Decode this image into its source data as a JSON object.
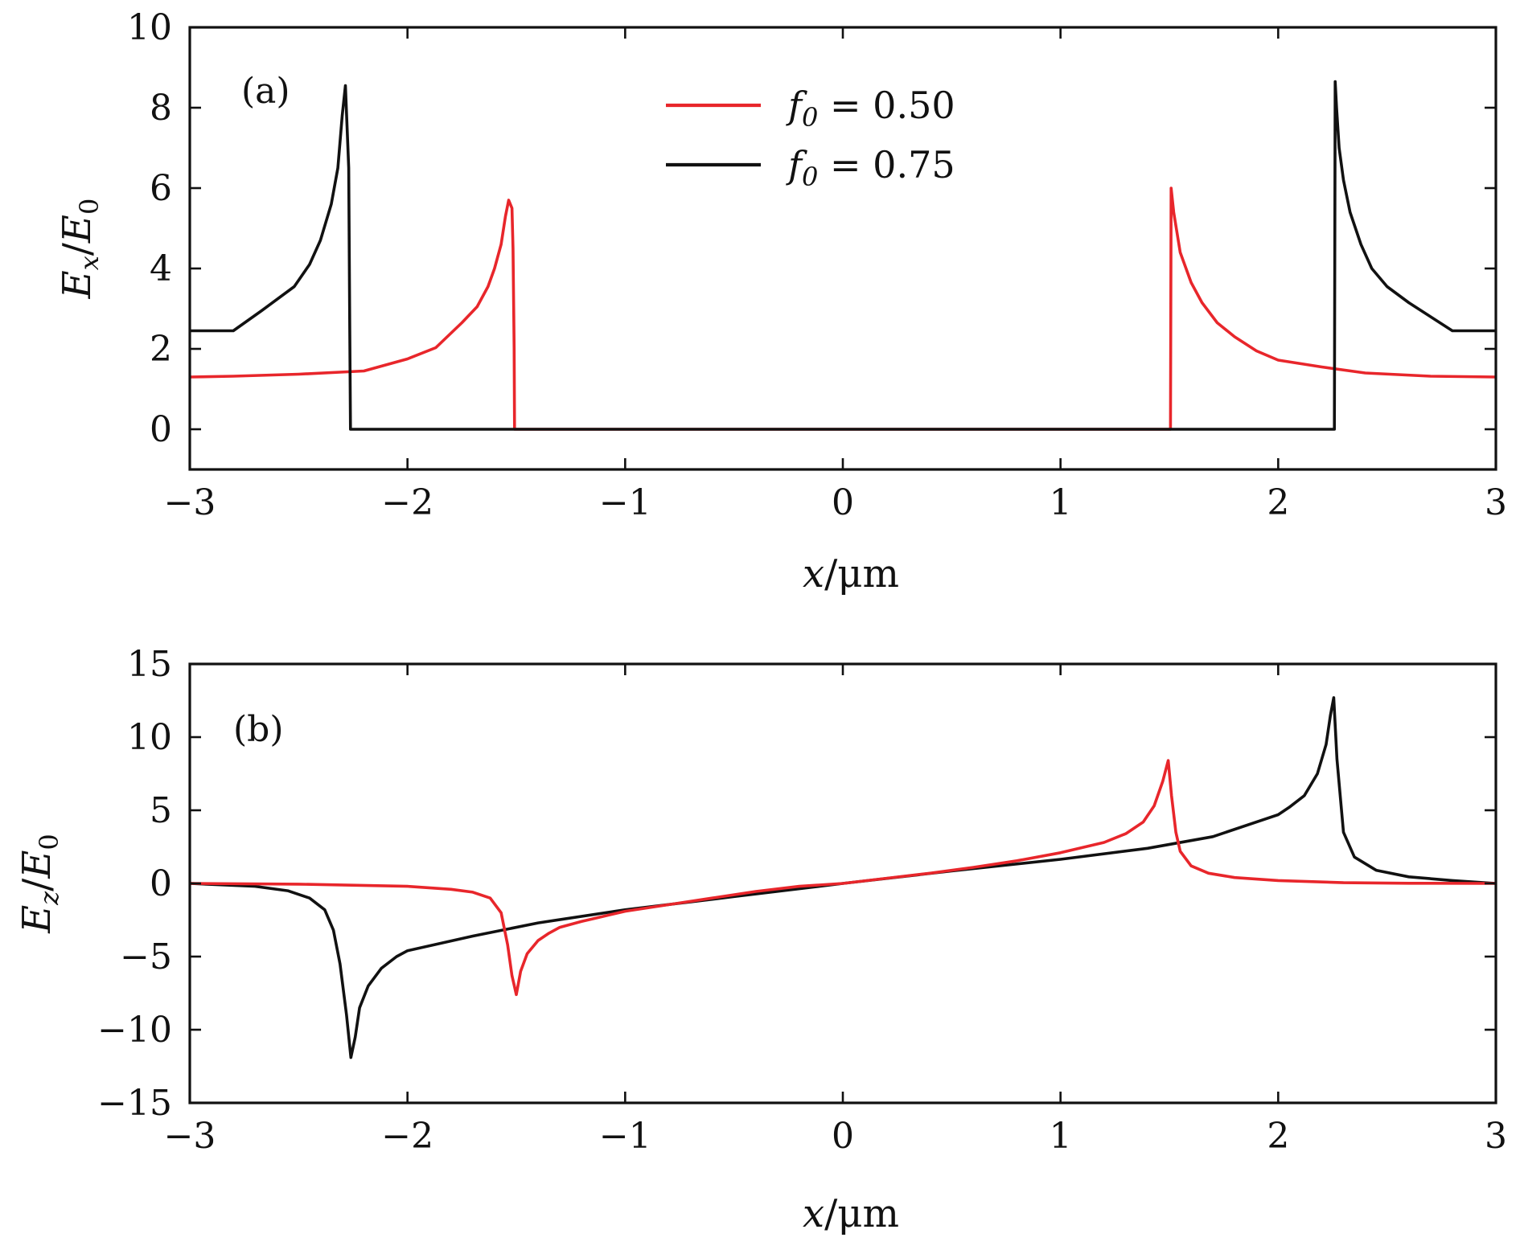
{
  "colors": {
    "red": "#e8262b",
    "black": "#111111"
  },
  "chart_data": [
    {
      "type": "line",
      "panel_label": "(a)",
      "xlabel": {
        "main": "x",
        "unit": "/μm"
      },
      "ylabel": {
        "num": "E",
        "num_sub": "x",
        "den": "E",
        "den_sub": "0"
      },
      "xlim": [
        -3,
        3
      ],
      "ylim": [
        -1,
        10
      ],
      "xticks": [
        -3,
        -2,
        -1,
        0,
        1,
        2,
        3
      ],
      "xtick_labels": [
        "−3",
        "−2",
        "−1",
        "0",
        "1",
        "2",
        "3"
      ],
      "yticks": [
        0,
        2,
        4,
        6,
        8,
        10
      ],
      "ytick_labels": [
        "0",
        "2",
        "4",
        "6",
        "8",
        "10"
      ],
      "legend": {
        "placement": "top-center",
        "entries": [
          {
            "var": "f",
            "sub": "0",
            "rest": " = 0.50",
            "color": "#e8262b"
          },
          {
            "var": "f",
            "sub": "0",
            "rest": " = 0.75",
            "color": "#111111"
          }
        ]
      },
      "series": [
        {
          "legend": "f0 = 0.50",
          "color": "#e8262b",
          "x": [
            -3.0,
            -2.8,
            -2.5,
            -2.2,
            -2.0,
            -1.87,
            -1.75,
            -1.68,
            -1.63,
            -1.6,
            -1.57,
            -1.55,
            -1.535,
            -1.52,
            -1.515,
            -1.51,
            -1.508,
            1.505,
            1.508,
            1.52,
            1.55,
            1.6,
            1.65,
            1.72,
            1.8,
            1.9,
            2.0,
            2.2,
            2.4,
            2.7,
            3.0
          ],
          "y": [
            1.3,
            1.32,
            1.37,
            1.45,
            1.75,
            2.03,
            2.65,
            3.05,
            3.55,
            4.0,
            4.6,
            5.3,
            5.7,
            5.5,
            4.5,
            2.0,
            0.0,
            0.0,
            6.0,
            5.4,
            4.4,
            3.65,
            3.15,
            2.65,
            2.3,
            1.95,
            1.72,
            1.55,
            1.4,
            1.32,
            1.3
          ]
        },
        {
          "legend": "f0 = 0.75",
          "color": "#111111",
          "x": [
            -3.0,
            -2.8,
            -2.67,
            -2.52,
            -2.45,
            -2.4,
            -2.35,
            -2.32,
            -2.3,
            -2.285,
            -2.27,
            -2.265,
            -2.262,
            2.258,
            2.262,
            2.268,
            2.28,
            2.3,
            2.33,
            2.38,
            2.43,
            2.5,
            2.6,
            2.8,
            3.0
          ],
          "y": [
            2.45,
            2.45,
            2.95,
            3.55,
            4.1,
            4.7,
            5.6,
            6.5,
            7.8,
            8.55,
            6.5,
            2.5,
            0.0,
            0.0,
            8.65,
            8.0,
            7.0,
            6.2,
            5.4,
            4.6,
            4.0,
            3.55,
            3.15,
            2.45,
            2.45
          ]
        }
      ]
    },
    {
      "type": "line",
      "panel_label": "(b)",
      "xlabel": {
        "main": "x",
        "unit": "/μm"
      },
      "ylabel": {
        "num": "E",
        "num_sub": "z",
        "den": "E",
        "den_sub": "0"
      },
      "xlim": [
        -3,
        3
      ],
      "ylim": [
        -15,
        15
      ],
      "xticks": [
        -3,
        -2,
        -1,
        0,
        1,
        2,
        3
      ],
      "xtick_labels": [
        "−3",
        "−2",
        "−1",
        "0",
        "1",
        "2",
        "3"
      ],
      "yticks": [
        -15,
        -10,
        -5,
        0,
        5,
        10,
        15
      ],
      "ytick_labels": [
        "−15",
        "−10",
        "−5",
        "0",
        "5",
        "10",
        "15"
      ],
      "series": [
        {
          "legend": "f0 = 0.50",
          "color": "#e8262b",
          "x": [
            -3.0,
            -2.5,
            -2.0,
            -1.8,
            -1.7,
            -1.62,
            -1.57,
            -1.54,
            -1.52,
            -1.5,
            -1.48,
            -1.45,
            -1.4,
            -1.35,
            -1.3,
            -1.2,
            -1.0,
            -0.8,
            -0.6,
            -0.4,
            -0.2,
            0.0,
            0.2,
            0.4,
            0.6,
            0.8,
            1.0,
            1.2,
            1.3,
            1.38,
            1.43,
            1.47,
            1.495,
            1.51,
            1.53,
            1.55,
            1.6,
            1.68,
            1.8,
            2.0,
            2.3,
            2.6,
            3.0
          ],
          "y": [
            0.0,
            -0.05,
            -0.2,
            -0.4,
            -0.6,
            -1.0,
            -2.0,
            -4.2,
            -6.3,
            -7.6,
            -6.0,
            -4.8,
            -3.9,
            -3.4,
            -3.0,
            -2.6,
            -1.9,
            -1.45,
            -1.0,
            -0.55,
            -0.2,
            0.0,
            0.35,
            0.7,
            1.1,
            1.55,
            2.1,
            2.8,
            3.4,
            4.2,
            5.3,
            7.0,
            8.4,
            6.0,
            3.5,
            2.2,
            1.2,
            0.7,
            0.4,
            0.2,
            0.05,
            0.01,
            0.0
          ],
          "order": 2
        },
        {
          "legend": "f0 = 0.75",
          "color": "#111111",
          "x": [
            -3.0,
            -2.7,
            -2.55,
            -2.45,
            -2.38,
            -2.34,
            -2.31,
            -2.28,
            -2.26,
            -2.24,
            -2.22,
            -2.18,
            -2.12,
            -2.05,
            -2.0,
            -1.7,
            -1.4,
            -1.0,
            -0.5,
            0.0,
            0.5,
            1.0,
            1.4,
            1.7,
            2.0,
            2.05,
            2.12,
            2.18,
            2.22,
            2.24,
            2.255,
            2.27,
            2.3,
            2.35,
            2.45,
            2.6,
            2.8,
            3.0
          ],
          "y": [
            0.0,
            -0.2,
            -0.5,
            -1.0,
            -1.8,
            -3.2,
            -5.5,
            -9.0,
            -11.9,
            -10.5,
            -8.5,
            -7.0,
            -5.8,
            -5.0,
            -4.6,
            -3.6,
            -2.7,
            -1.8,
            -0.9,
            0.0,
            0.85,
            1.65,
            2.4,
            3.2,
            4.7,
            5.2,
            6.0,
            7.5,
            9.5,
            11.5,
            12.7,
            8.5,
            3.5,
            1.8,
            0.9,
            0.45,
            0.2,
            0.0
          ],
          "order": 1
        }
      ]
    }
  ]
}
